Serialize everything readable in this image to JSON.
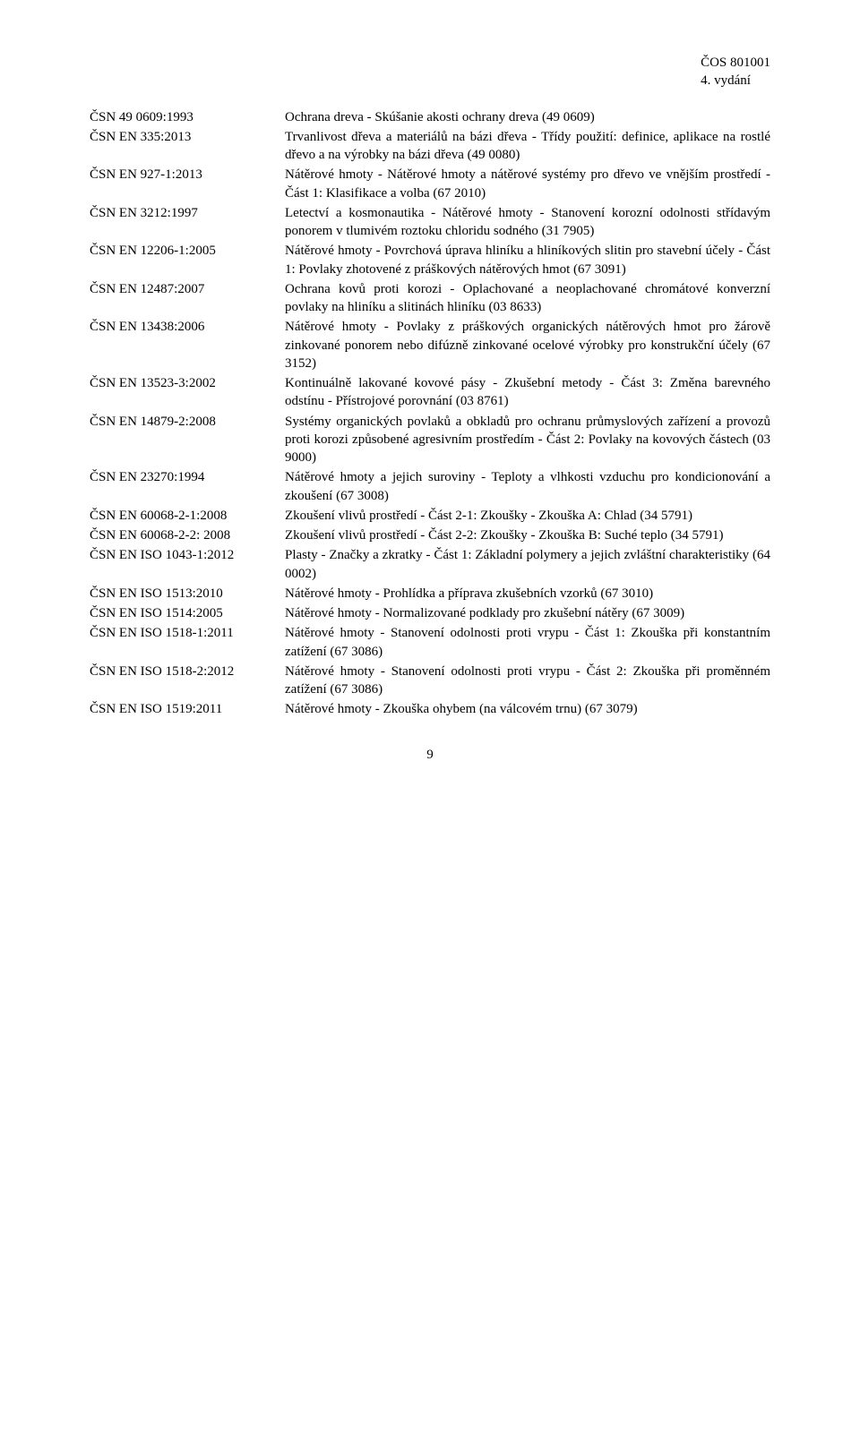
{
  "header": {
    "doc_code": "ČOS 801001",
    "edition": "4. vydání"
  },
  "entries": [
    {
      "code": "ČSN 49 0609:1993",
      "desc": "Ochrana dreva - Skúšanie akosti ochrany dreva (49 0609)"
    },
    {
      "code": "ČSN EN 335:2013",
      "desc": "Trvanlivost dřeva a materiálů na bázi dřeva - Třídy použití: definice, aplikace na rostlé dřevo a na výrobky na bázi dřeva (49 0080)"
    },
    {
      "code": "ČSN EN 927-1:2013",
      "desc": "Nátěrové hmoty - Nátěrové hmoty a nátěrové systémy pro dřevo ve vnějším prostředí - Část 1: Klasifikace a volba (67 2010)"
    },
    {
      "code": "ČSN EN 3212:1997",
      "desc": "Letectví a kosmonautika - Nátěrové hmoty - Stanovení korozní odolnosti střídavým ponorem v tlumivém roztoku chloridu sodného (31 7905)"
    },
    {
      "code": "ČSN EN 12206-1:2005",
      "desc": "Nátěrové hmoty - Povrchová úprava hliníku a hliníkových slitin pro stavební účely - Část 1: Povlaky zhotovené z práškových nátěrových hmot (67 3091)"
    },
    {
      "code": "ČSN EN 12487:2007",
      "desc": "Ochrana kovů proti korozi - Oplachované a neoplachované chromátové konverzní povlaky na hliníku a slitinách hliníku (03 8633)"
    },
    {
      "code": "ČSN EN 13438:2006",
      "desc": "Nátěrové hmoty - Povlaky z práškových organických nátěrových hmot pro žárově zinkované ponorem nebo difúzně zinkované ocelové výrobky pro konstrukční účely (67 3152)"
    },
    {
      "code": "ČSN EN 13523-3:2002",
      "desc": "Kontinuálně lakované kovové pásy - Zkušební metody - Část 3: Změna barevného odstínu - Přístrojové porovnání (03 8761)"
    },
    {
      "code": "ČSN EN 14879-2:2008",
      "desc": "Systémy organických povlaků a obkladů pro ochranu průmyslových zařízení a provozů proti korozi způsobené agresivním prostředím - Část 2: Povlaky na kovových částech (03 9000)"
    },
    {
      "code": "ČSN EN 23270:1994",
      "desc": "Nátěrové hmoty a jejich suroviny - Teploty a vlhkosti vzduchu pro kondicionování a zkoušení (67 3008)"
    },
    {
      "code": "ČSN EN 60068-2-1:2008",
      "desc": "Zkoušení vlivů prostředí - Část 2-1: Zkoušky - Zkouška A: Chlad (34 5791)"
    },
    {
      "code": "ČSN EN 60068-2-2: 2008",
      "desc": "Zkoušení vlivů prostředí - Část 2-2: Zkoušky - Zkouška B: Suché teplo (34 5791)"
    },
    {
      "code": "ČSN EN ISO 1043-1:2012",
      "desc": "Plasty - Značky a zkratky - Část 1: Základní polymery a jejich zvláštní charakteristiky (64 0002)"
    },
    {
      "code": "ČSN EN ISO 1513:2010",
      "desc": "Nátěrové hmoty - Prohlídka a příprava zkušebních vzorků (67 3010)"
    },
    {
      "code": "ČSN EN ISO 1514:2005",
      "desc": "Nátěrové hmoty - Normalizované podklady pro zkušební nátěry (67 3009)"
    },
    {
      "code": "ČSN EN ISO 1518-1:2011",
      "desc": "Nátěrové hmoty - Stanovení odolnosti proti vrypu - Část 1: Zkouška při konstantním zatížení (67 3086)"
    },
    {
      "code": "ČSN EN ISO 1518-2:2012",
      "desc": "Nátěrové hmoty - Stanovení odolnosti proti vrypu - Část 2: Zkouška při proměnném zatížení (67 3086)"
    },
    {
      "code": "ČSN EN ISO 1519:2011",
      "desc": "Nátěrové hmoty - Zkouška ohybem (na válcovém trnu) (67 3079)"
    }
  ],
  "page_number": "9"
}
